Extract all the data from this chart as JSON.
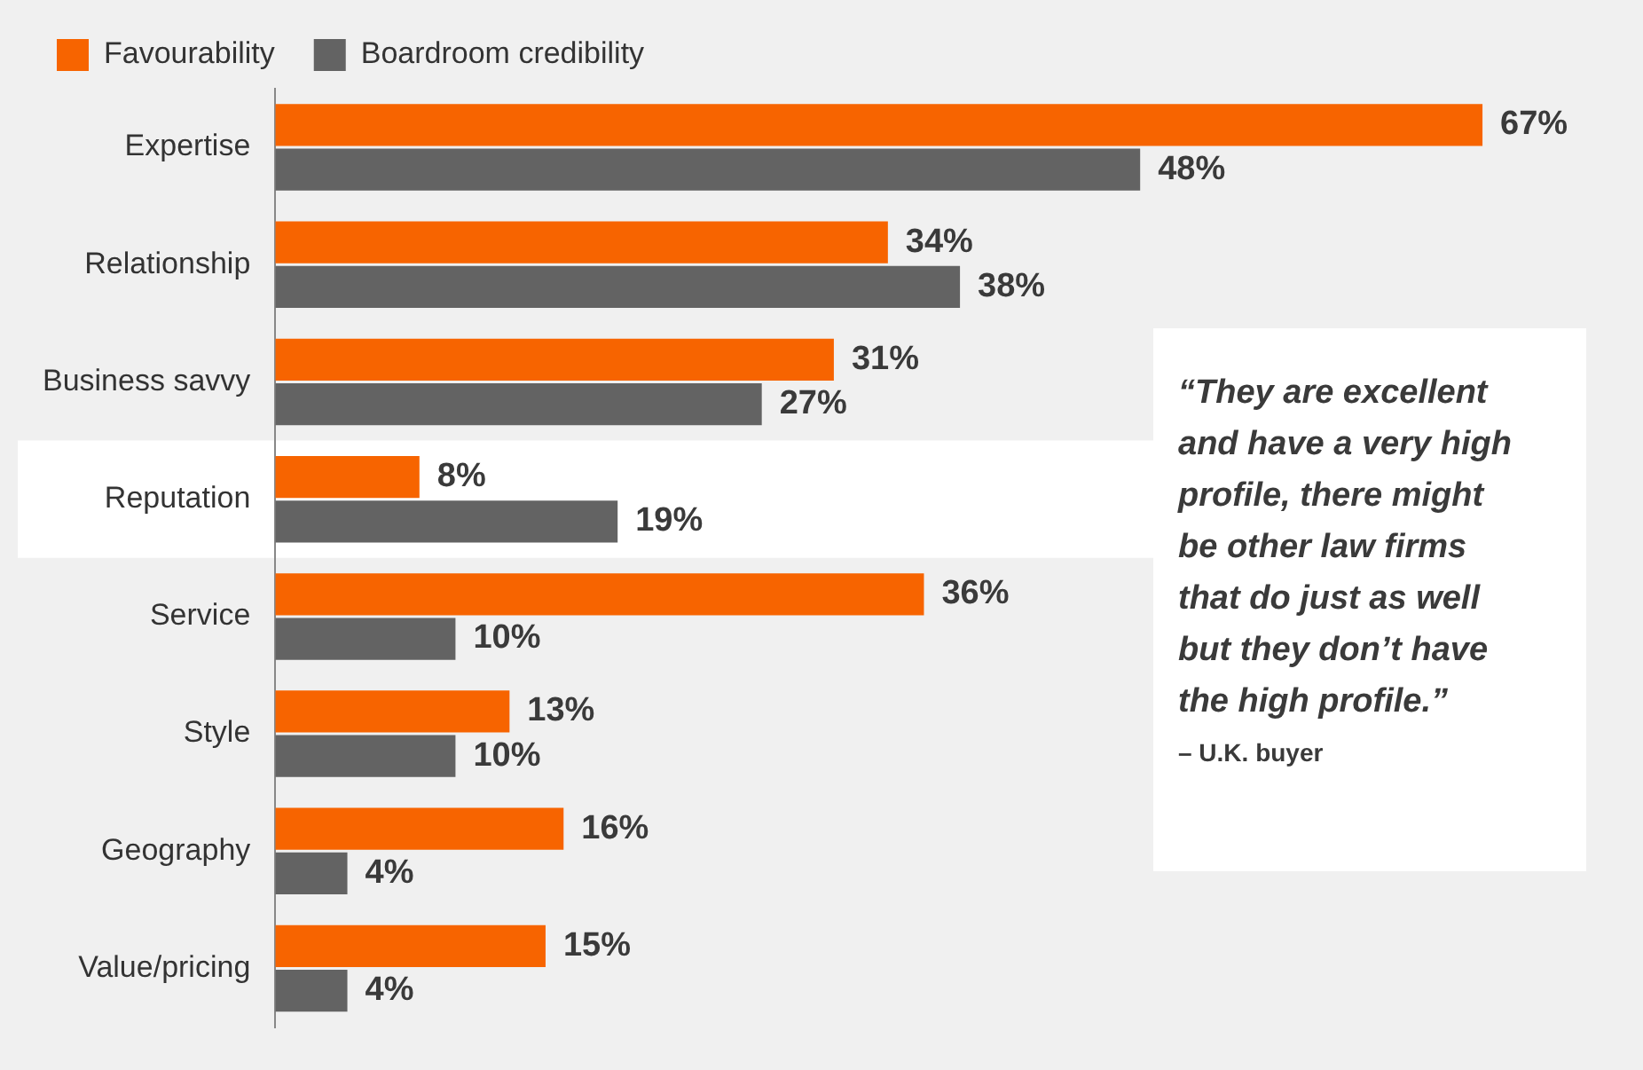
{
  "chart_data": {
    "type": "bar",
    "orientation": "horizontal",
    "categories": [
      "Expertise",
      "Relationship",
      "Business savvy",
      "Reputation",
      "Service",
      "Style",
      "Geography",
      "Value/pricing"
    ],
    "series": [
      {
        "name": "Favourability",
        "color": "#f76400",
        "values": [
          67,
          34,
          31,
          8,
          36,
          13,
          16,
          15
        ],
        "value_labels": [
          "67%",
          "34%",
          "31%",
          "8%",
          "36%",
          "13%",
          "16%",
          "15%"
        ]
      },
      {
        "name": "Boardroom credibility",
        "color": "#636363",
        "values": [
          48,
          38,
          27,
          19,
          10,
          10,
          4,
          4
        ],
        "value_labels": [
          "48%",
          "38%",
          "27%",
          "19%",
          "10%",
          "10%",
          "4%",
          "4%"
        ]
      }
    ],
    "bands": [
      {
        "axis": "y",
        "from": "Reputation",
        "to": "Reputation",
        "color": "#ffffff"
      }
    ],
    "annotations": [
      "“They are excellent and have a very high profile, there might be other law firms that do just as well but they don’t have the high profile.”",
      "– U.K. buyer"
    ],
    "legend": "top left",
    "grid": false
  }
}
